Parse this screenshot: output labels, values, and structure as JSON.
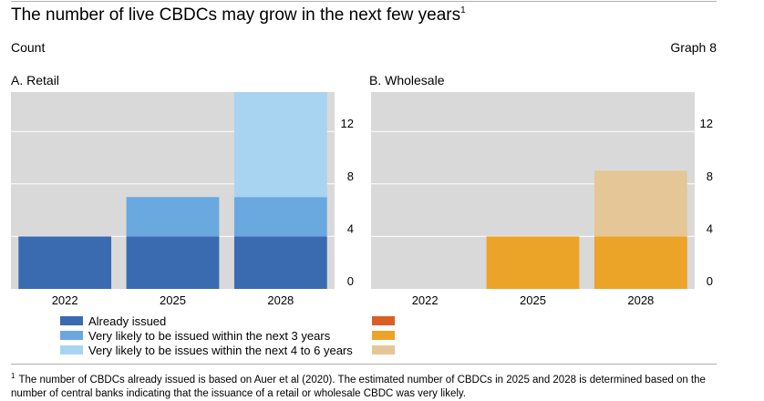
{
  "header": {
    "title": "The number of live CBDCs may grow in the next few years",
    "title_note_marker": "1",
    "unit": "Count",
    "graph_label": "Graph 8"
  },
  "colors": {
    "panel_background": "#d9d9d9",
    "gridline": "#ffffff",
    "retail_already_issued": "#3a6bb0",
    "retail_next_3_years": "#6aa8e0",
    "retail_next_4_to_6_years": "#a8d4f2",
    "wholesale_already_issued": "#d95f24",
    "wholesale_next_3_years": "#eba427",
    "wholesale_next_4_to_6_years": "#e5c697"
  },
  "legend": {
    "retail": [
      {
        "label": "Already issued",
        "color": "#3a6bb0"
      },
      {
        "label": "Very likely to be issued within the next 3 years",
        "color": "#6aa8e0"
      },
      {
        "label": "Very likely to be issues within the next 4 to 6 years",
        "color": "#a8d4f2"
      }
    ],
    "wholesale": [
      {
        "color": "#d95f24"
      },
      {
        "color": "#eba427"
      },
      {
        "color": "#e5c697"
      }
    ]
  },
  "chart_data": [
    {
      "type": "bar",
      "stacked": true,
      "title": "A. Retail",
      "categories": [
        "2022",
        "2025",
        "2028"
      ],
      "series": [
        {
          "name": "Already issued",
          "color": "#3a6bb0",
          "values": [
            4,
            4,
            4
          ]
        },
        {
          "name": "Very likely to be issued within the next 3 years",
          "color": "#6aa8e0",
          "values": [
            0,
            3,
            3
          ]
        },
        {
          "name": "Very likely to be issues within the next 4 to 6 years",
          "color": "#a8d4f2",
          "values": [
            0,
            0,
            8
          ]
        }
      ],
      "yticks": [
        "0",
        "4",
        "8",
        "12"
      ],
      "ylim": [
        0,
        15
      ],
      "y_axis_side": "right",
      "grid": true
    },
    {
      "type": "bar",
      "stacked": true,
      "title": "B. Wholesale",
      "categories": [
        "2022",
        "2025",
        "2028"
      ],
      "series": [
        {
          "name": "Already issued",
          "color": "#d95f24",
          "values": [
            0,
            0,
            0
          ]
        },
        {
          "name": "Very likely to be issued within the next 3 years",
          "color": "#eba427",
          "values": [
            0,
            4,
            4
          ]
        },
        {
          "name": "Very likely to be issues within the next 4 to 6 years",
          "color": "#e5c697",
          "values": [
            0,
            0,
            5
          ]
        }
      ],
      "yticks": [
        "0",
        "4",
        "8",
        "12"
      ],
      "ylim": [
        0,
        15
      ],
      "y_axis_side": "right",
      "grid": true
    }
  ],
  "footnote": {
    "marker": "1",
    "text": "The number of CBDCs already issued is based on Auer et al (2020). The estimated number of CBDCs in 2025 and 2028 is determined based on the number of central banks indicating that the issuance of a retail or wholesale CBDC was very likely."
  }
}
